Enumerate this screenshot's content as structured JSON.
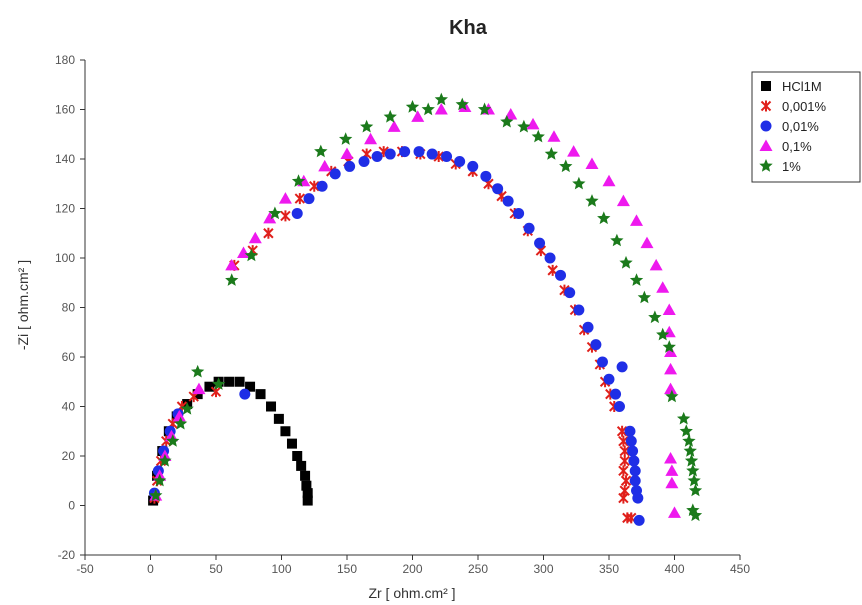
{
  "chart_data": {
    "type": "scatter",
    "title": "Kha",
    "xlabel": "Zr [ ohm.cm² ]",
    "ylabel": "-Zi [ ohm.cm² ]",
    "xlim": [
      -50,
      450
    ],
    "ylim": [
      -20,
      180
    ],
    "xticks": [
      -50,
      0,
      50,
      100,
      150,
      200,
      250,
      300,
      350,
      400,
      450
    ],
    "yticks": [
      -20,
      0,
      20,
      40,
      60,
      80,
      100,
      120,
      140,
      160,
      180
    ],
    "grid": false,
    "legend_position": "top-right",
    "series": [
      {
        "name": "HCl1M",
        "marker": "square",
        "color": "#000000",
        "x": [
          2,
          5,
          9,
          14,
          20,
          28,
          36,
          45,
          52,
          60,
          68,
          76,
          84,
          92,
          98,
          103,
          108,
          112,
          115,
          118,
          119,
          120,
          120
        ],
        "y": [
          2,
          12,
          22,
          30,
          36,
          41,
          45,
          48,
          50,
          50,
          50,
          48,
          45,
          40,
          35,
          30,
          25,
          20,
          16,
          12,
          8,
          5,
          2
        ]
      },
      {
        "name": "0,001%",
        "marker": "x",
        "color": "#e0201b",
        "x": [
          3,
          5,
          8,
          12,
          17,
          24,
          33,
          50,
          64,
          78,
          90,
          103,
          114,
          125,
          138,
          151,
          165,
          178,
          192,
          206,
          220,
          233,
          246,
          258,
          268,
          278,
          288,
          298,
          307,
          316,
          324,
          331,
          337,
          343,
          347,
          351,
          354,
          360,
          361,
          362,
          362,
          361,
          363,
          362,
          361,
          364,
          367
        ],
        "y": [
          3,
          10,
          18,
          26,
          33,
          40,
          44,
          46,
          97,
          103,
          110,
          117,
          124,
          129,
          135,
          139,
          142,
          143,
          143,
          142,
          141,
          138,
          135,
          130,
          125,
          118,
          111,
          103,
          95,
          87,
          79,
          71,
          64,
          57,
          50,
          45,
          40,
          30,
          26,
          22,
          18,
          14,
          10,
          6,
          3,
          -5,
          -5
        ]
      },
      {
        "name": "0,01%",
        "marker": "circle",
        "color": "#1f2ee6",
        "x": [
          3,
          6,
          10,
          15,
          21,
          72,
          112,
          121,
          131,
          141,
          152,
          163,
          173,
          183,
          194,
          205,
          215,
          226,
          236,
          246,
          256,
          265,
          273,
          281,
          289,
          297,
          305,
          313,
          320,
          327,
          334,
          340,
          345,
          350,
          355,
          358,
          360,
          366,
          367,
          368,
          369,
          370,
          370,
          371,
          372,
          373
        ],
        "y": [
          5,
          14,
          22,
          30,
          37,
          45,
          118,
          124,
          129,
          134,
          137,
          139,
          141,
          142,
          143,
          143,
          142,
          141,
          139,
          137,
          133,
          128,
          123,
          118,
          112,
          106,
          100,
          93,
          86,
          79,
          72,
          65,
          58,
          51,
          45,
          40,
          56,
          30,
          26,
          22,
          18,
          14,
          10,
          6,
          3,
          -6
        ]
      },
      {
        "name": "0,1%",
        "marker": "triangle",
        "color": "#ee19ee",
        "x": [
          4,
          7,
          11,
          16,
          22,
          37,
          62,
          71,
          80,
          91,
          103,
          117,
          133,
          150,
          168,
          186,
          204,
          222,
          240,
          258,
          275,
          292,
          308,
          323,
          337,
          350,
          361,
          371,
          379,
          386,
          391,
          396,
          396,
          397,
          397,
          397,
          397,
          398,
          398,
          400
        ],
        "y": [
          4,
          12,
          20,
          28,
          36,
          47,
          97,
          102,
          108,
          116,
          124,
          131,
          137,
          142,
          148,
          153,
          157,
          160,
          161,
          160,
          158,
          154,
          149,
          143,
          138,
          131,
          123,
          115,
          106,
          97,
          88,
          79,
          70,
          62,
          55,
          47,
          19,
          14,
          9,
          -3
        ]
      },
      {
        "name": "1%",
        "marker": "star",
        "color": "#1b7a1b",
        "x": [
          4,
          7,
          11,
          17,
          23,
          28,
          36,
          52,
          62,
          77,
          95,
          113,
          130,
          149,
          165,
          183,
          200,
          212,
          222,
          238,
          255,
          272,
          285,
          296,
          306,
          317,
          327,
          337,
          346,
          356,
          363,
          371,
          377,
          385,
          391,
          396,
          398,
          407,
          409,
          411,
          412,
          413,
          414,
          415,
          416,
          414,
          416
        ],
        "y": [
          4,
          10,
          18,
          26,
          33,
          39,
          54,
          49,
          91,
          101,
          118,
          131,
          143,
          148,
          153,
          157,
          161,
          160,
          164,
          162,
          160,
          155,
          153,
          149,
          142,
          137,
          130,
          123,
          116,
          107,
          98,
          91,
          84,
          76,
          69,
          64,
          44,
          35,
          30,
          26,
          22,
          18,
          14,
          10,
          6,
          -2,
          -4
        ]
      }
    ]
  }
}
